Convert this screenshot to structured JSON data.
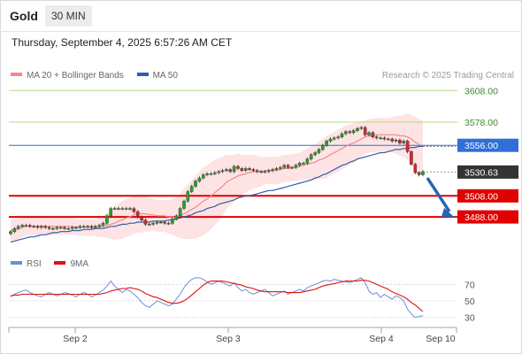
{
  "header": {
    "symbol": "Gold",
    "timeframe": "30 MIN",
    "timestamp": "Thursday, September 4, 2025 6:57:26 AM CET"
  },
  "legend": {
    "items": [
      {
        "label": "MA 20 + Bollinger Bands",
        "color": "#f08a8a"
      },
      {
        "label": "MA 50",
        "color": "#2f5fa8"
      }
    ],
    "credit": "Research © 2025 Trading Central"
  },
  "rsi_legend": {
    "items": [
      {
        "label": "RSI",
        "color": "#6b8fd6"
      },
      {
        "label": "9MA",
        "color": "#dd1111"
      }
    ]
  },
  "colors": {
    "bull": "#2ca02c",
    "bear": "#d62728",
    "resistance_green": "#b5dc8a",
    "level_blue": "#2f6fd6",
    "support_red": "#e00000",
    "current_price_tag": "#333333",
    "forecast_arrow": "#2a63b5",
    "bollinger_fill": "#fde3e3"
  },
  "chart_data": [
    {
      "type": "candlestick",
      "title": "Gold",
      "timeframe": "30 MIN",
      "y_range": [
        3462,
        3615
      ],
      "x_tick_labels": [
        "Sep 2",
        "Sep 3",
        "Sep 4",
        "Sep 10"
      ],
      "levels": [
        {
          "value": 3608.0,
          "label": "3608.00",
          "style": "resistance"
        },
        {
          "value": 3578.0,
          "label": "3578.00",
          "style": "resistance"
        },
        {
          "value": 3556.0,
          "label": "3556.00",
          "style": "pivot"
        },
        {
          "value": 3530.63,
          "label": "3530.63",
          "style": "current"
        },
        {
          "value": 3508.0,
          "label": "3508.00",
          "style": "support"
        },
        {
          "value": 3488.0,
          "label": "3488.00",
          "style": "support"
        }
      ],
      "candles_close": [
        3474,
        3477,
        3479,
        3480,
        3480,
        3479,
        3479,
        3478,
        3479,
        3478,
        3477,
        3477,
        3478,
        3478,
        3477,
        3477,
        3478,
        3478,
        3479,
        3479,
        3479,
        3478,
        3479,
        3480,
        3482,
        3489,
        3496,
        3496,
        3496,
        3496,
        3496,
        3496,
        3493,
        3488,
        3485,
        3481,
        3481,
        3482,
        3483,
        3483,
        3482,
        3482,
        3486,
        3489,
        3496,
        3503,
        3512,
        3517,
        3522,
        3525,
        3528,
        3529,
        3529,
        3530,
        3531,
        3532,
        3533,
        3531,
        3536,
        3534,
        3532,
        3534,
        3533,
        3532,
        3531,
        3531,
        3531,
        3532,
        3533,
        3534,
        3535,
        3537,
        3535,
        3535,
        3537,
        3539,
        3539,
        3543,
        3547,
        3549,
        3552,
        3556,
        3560,
        3562,
        3563,
        3564,
        3567,
        3569,
        3568,
        3570,
        3572,
        3573,
        3566,
        3568,
        3564,
        3563,
        3563,
        3562,
        3562,
        3560,
        3561,
        3558,
        3560,
        3550,
        3538,
        3530,
        3528,
        3531
      ],
      "ma20": [
        3475,
        3476,
        3477,
        3478,
        3479,
        3479,
        3479,
        3479,
        3479,
        3479,
        3479,
        3479,
        3479,
        3479,
        3479,
        3479,
        3479,
        3478,
        3478,
        3478,
        3478,
        3478,
        3478,
        3478,
        3479,
        3480,
        3481,
        3482,
        3484,
        3485,
        3487,
        3488,
        3490,
        3491,
        3491,
        3491,
        3490,
        3490,
        3489,
        3489,
        3489,
        3488,
        3488,
        3488,
        3489,
        3491,
        3493,
        3495,
        3497,
        3500,
        3503,
        3505,
        3508,
        3511,
        3514,
        3517,
        3521,
        3523,
        3525,
        3527,
        3528,
        3529,
        3530,
        3531,
        3531,
        3531,
        3532,
        3532,
        3532,
        3532,
        3533,
        3534,
        3534,
        3535,
        3535,
        3536,
        3537,
        3538,
        3539,
        3540,
        3542,
        3543,
        3545,
        3547,
        3549,
        3551,
        3553,
        3555,
        3557,
        3558,
        3560,
        3562,
        3564,
        3565,
        3565,
        3566,
        3566,
        3566,
        3566,
        3566,
        3566,
        3565,
        3565,
        3564,
        3562,
        3559,
        3557,
        3555
      ],
      "ma50": [
        3464,
        3465,
        3466,
        3467,
        3468,
        3469,
        3469,
        3470,
        3471,
        3471,
        3472,
        3473,
        3473,
        3474,
        3474,
        3474,
        3475,
        3475,
        3475,
        3476,
        3476,
        3476,
        3477,
        3477,
        3477,
        3478,
        3479,
        3479,
        3480,
        3481,
        3481,
        3482,
        3482,
        3483,
        3483,
        3483,
        3483,
        3484,
        3484,
        3484,
        3484,
        3485,
        3485,
        3486,
        3487,
        3488,
        3489,
        3490,
        3492,
        3493,
        3494,
        3496,
        3497,
        3498,
        3500,
        3501,
        3502,
        3503,
        3504,
        3506,
        3507,
        3508,
        3508,
        3509,
        3510,
        3511,
        3512,
        3513,
        3513,
        3514,
        3515,
        3516,
        3517,
        3518,
        3519,
        3520,
        3521,
        3522,
        3523,
        3525,
        3526,
        3528,
        3529,
        3531,
        3533,
        3535,
        3537,
        3538,
        3540,
        3541,
        3543,
        3544,
        3545,
        3546,
        3547,
        3548,
        3549,
        3549,
        3550,
        3551,
        3552,
        3552,
        3553,
        3553,
        3554,
        3554,
        3555,
        3555
      ],
      "bb_width": [
        10,
        10,
        10,
        9,
        9,
        9,
        8,
        8,
        8,
        8,
        8,
        8,
        8,
        8,
        8,
        8,
        8,
        8,
        8,
        8,
        8,
        8,
        8,
        9,
        10,
        12,
        14,
        16,
        17,
        18,
        18,
        18,
        18,
        18,
        18,
        17,
        16,
        15,
        15,
        15,
        15,
        16,
        17,
        19,
        21,
        24,
        26,
        28,
        30,
        31,
        32,
        32,
        32,
        31,
        30,
        28,
        26,
        24,
        22,
        21,
        19,
        18,
        17,
        16,
        15,
        14,
        13,
        13,
        13,
        13,
        13,
        13,
        13,
        13,
        13,
        13,
        14,
        15,
        16,
        17,
        18,
        19,
        20,
        20,
        20,
        20,
        20,
        20,
        19,
        19,
        18,
        17,
        16,
        16,
        16,
        16,
        16,
        16,
        16,
        17,
        18,
        19,
        20,
        22,
        23,
        24,
        24,
        24
      ]
    },
    {
      "type": "line",
      "title": "RSI",
      "y_range": [
        22,
        80
      ],
      "y_tick_labels": [
        "70",
        "50",
        "30"
      ],
      "y_ticks": [
        70,
        50,
        30
      ],
      "series": [
        {
          "name": "RSI",
          "values": [
            55,
            58,
            60,
            62,
            63,
            60,
            58,
            56,
            55,
            58,
            60,
            58,
            56,
            58,
            60,
            59,
            57,
            55,
            58,
            60,
            58,
            55,
            57,
            60,
            63,
            68,
            74,
            68,
            64,
            60,
            64,
            62,
            58,
            54,
            48,
            44,
            42,
            46,
            50,
            48,
            46,
            44,
            46,
            52,
            58,
            66,
            72,
            76,
            78,
            78,
            76,
            73,
            70,
            72,
            74,
            72,
            70,
            68,
            72,
            66,
            62,
            64,
            60,
            58,
            60,
            62,
            64,
            60,
            56,
            58,
            60,
            62,
            58,
            60,
            62,
            64,
            62,
            66,
            68,
            70,
            72,
            74,
            75,
            74,
            76,
            75,
            74,
            73,
            72,
            74,
            76,
            78,
            72,
            62,
            58,
            60,
            54,
            58,
            55,
            52,
            56,
            54,
            50,
            40,
            34,
            30,
            31,
            32
          ]
        },
        {
          "name": "9MA",
          "values": [
            56,
            57,
            57,
            58,
            58,
            58,
            58,
            58,
            58,
            58,
            58,
            58,
            58,
            58,
            58,
            58,
            58,
            58,
            58,
            58,
            58,
            58,
            58,
            58,
            59,
            60,
            62,
            63,
            64,
            65,
            65,
            66,
            65,
            64,
            62,
            59,
            57,
            55,
            54,
            52,
            50,
            48,
            47,
            47,
            48,
            50,
            53,
            57,
            61,
            65,
            69,
            72,
            74,
            74,
            74,
            74,
            73,
            72,
            71,
            70,
            69,
            67,
            66,
            65,
            63,
            62,
            61,
            61,
            61,
            61,
            61,
            61,
            60,
            60,
            60,
            60,
            61,
            62,
            63,
            64,
            66,
            68,
            69,
            70,
            71,
            72,
            73,
            74,
            74,
            74,
            74,
            75,
            75,
            74,
            72,
            70,
            68,
            66,
            64,
            61,
            59,
            57,
            55,
            52,
            48,
            45,
            41,
            37
          ]
        }
      ]
    }
  ]
}
